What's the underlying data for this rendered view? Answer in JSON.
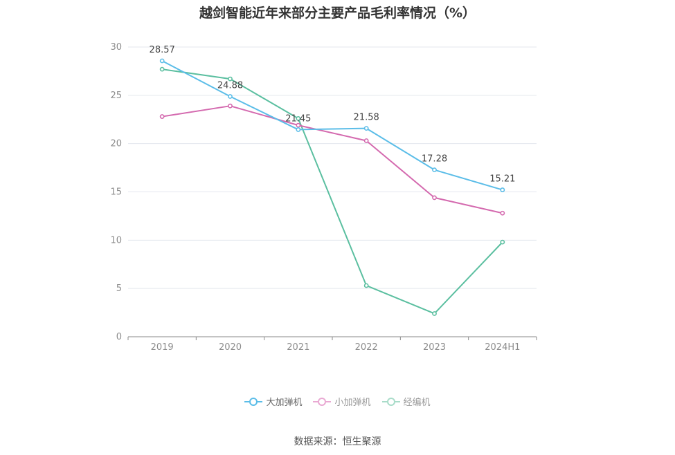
{
  "chart_data": {
    "type": "line",
    "title": "越剑智能近年来部分主要产品毛利率情况（%）",
    "categories": [
      "2019",
      "2020",
      "2021",
      "2022",
      "2023",
      "2024H1"
    ],
    "ylim": [
      0,
      30
    ],
    "yticks": [
      "0",
      "5",
      "10",
      "15",
      "20",
      "25",
      "30"
    ],
    "grid": true,
    "legend_position": "bottom",
    "series": [
      {
        "name": "大加弹机",
        "color": "#5bbde8",
        "values": [
          28.57,
          24.88,
          21.45,
          21.58,
          17.28,
          15.21
        ],
        "labels": [
          "28.57",
          "24.88",
          "21.45",
          "21.58",
          "17.28",
          "15.21"
        ]
      },
      {
        "name": "小加弹机",
        "color": "#d46aaf",
        "values": [
          22.8,
          23.9,
          21.9,
          20.3,
          14.4,
          12.8
        ]
      },
      {
        "name": "经编机",
        "color": "#5bbfa0",
        "values": [
          27.7,
          26.7,
          22.6,
          5.3,
          2.4,
          9.8
        ]
      }
    ]
  },
  "source": "数据来源：恒生聚源"
}
